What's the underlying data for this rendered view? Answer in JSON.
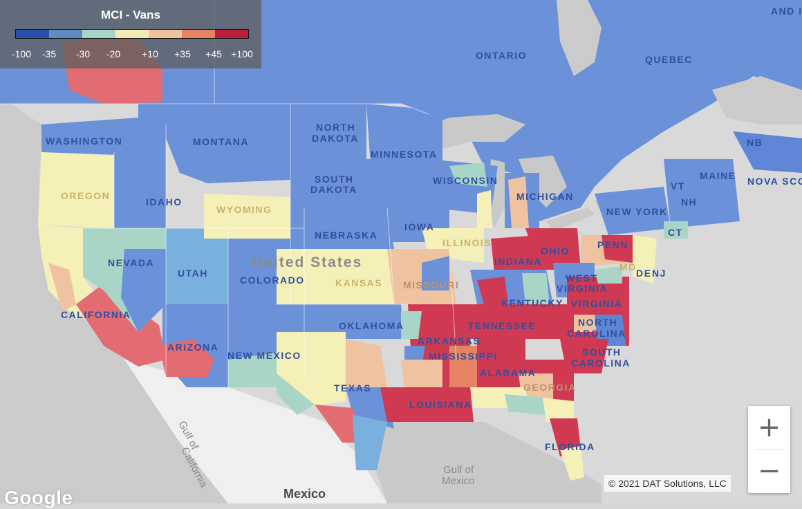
{
  "legend": {
    "title": "MCI - Vans",
    "colors": [
      "#2a4fb0",
      "#5f8dbf",
      "#a8d5c5",
      "#f2ebb3",
      "#f0c3a0",
      "#e58363",
      "#b91f3b"
    ],
    "ticks": [
      "-100",
      "-35",
      "-30",
      "-20",
      "+10",
      "+35",
      "+45",
      "+100"
    ]
  },
  "map_labels": {
    "ontario": "ONTARIO",
    "quebec": "QUEBEC",
    "washington": "WASHINGTON",
    "montana": "MONTANA",
    "north_dakota_1": "NORTH",
    "north_dakota_2": "DAKOTA",
    "minnesota": "MINNESOTA",
    "wisconsin": "WISCONSIN",
    "michigan": "MICHIGAN",
    "oregon": "OREGON",
    "idaho": "IDAHO",
    "south_dakota_1": "SOUTH",
    "south_dakota_2": "DAKOTA",
    "wyoming": "WYOMING",
    "iowa": "IOWA",
    "nebraska": "NEBRASKA",
    "illinois": "ILLINOIS",
    "indiana": "INDIANA",
    "ohio": "OHIO",
    "penn": "PENN",
    "new_york": "NEW YORK",
    "maine": "MAINE",
    "nova_scotia": "NOVA SCO",
    "nb": "NB",
    "vt": "VT",
    "nh": "NH",
    "ct": "CT",
    "nevada": "NEVADA",
    "utah": "UTAH",
    "colorado": "COLORADO",
    "kansas": "KANSAS",
    "missouri": "MISSOURI",
    "united_states": "United States",
    "west_virginia_1": "WEST",
    "west_virginia_2": "VIRGINIA",
    "virginia": "VIRGINIA",
    "kentucky": "KENTUCKY",
    "nj": "NJ",
    "de": "DE",
    "md": "MD",
    "california": "CALIFORNIA",
    "arizona": "ARIZONA",
    "new_mexico": "NEW MEXICO",
    "oklahoma": "OKLAHOMA",
    "arkansas": "ARKANSAS",
    "tennessee": "TENNESSEE",
    "north_carolina_1": "NORTH",
    "north_carolina_2": "CAROLINA",
    "south_carolina_1": "SOUTH",
    "south_carolina_2": "CAROLINA",
    "mississippi": "MISSISSIPPI",
    "alabama": "ALABAMA",
    "georgia": "GEORGIA",
    "texas": "TEXAS",
    "louisiana": "LOUISIANA",
    "florida": "FLORIDA",
    "gulf_california_1": "Gulf of",
    "gulf_california_2": "California",
    "gulf_mexico_1": "Gulf of",
    "gulf_mexico_2": "Mexico",
    "mexico": "Mexico",
    "new_brunswick_top": "AND I"
  },
  "zoom": {
    "in_label": "+",
    "out_label": "−"
  },
  "copyright": "© 2021 DAT Solutions, LLC",
  "google_logo": "Google"
}
